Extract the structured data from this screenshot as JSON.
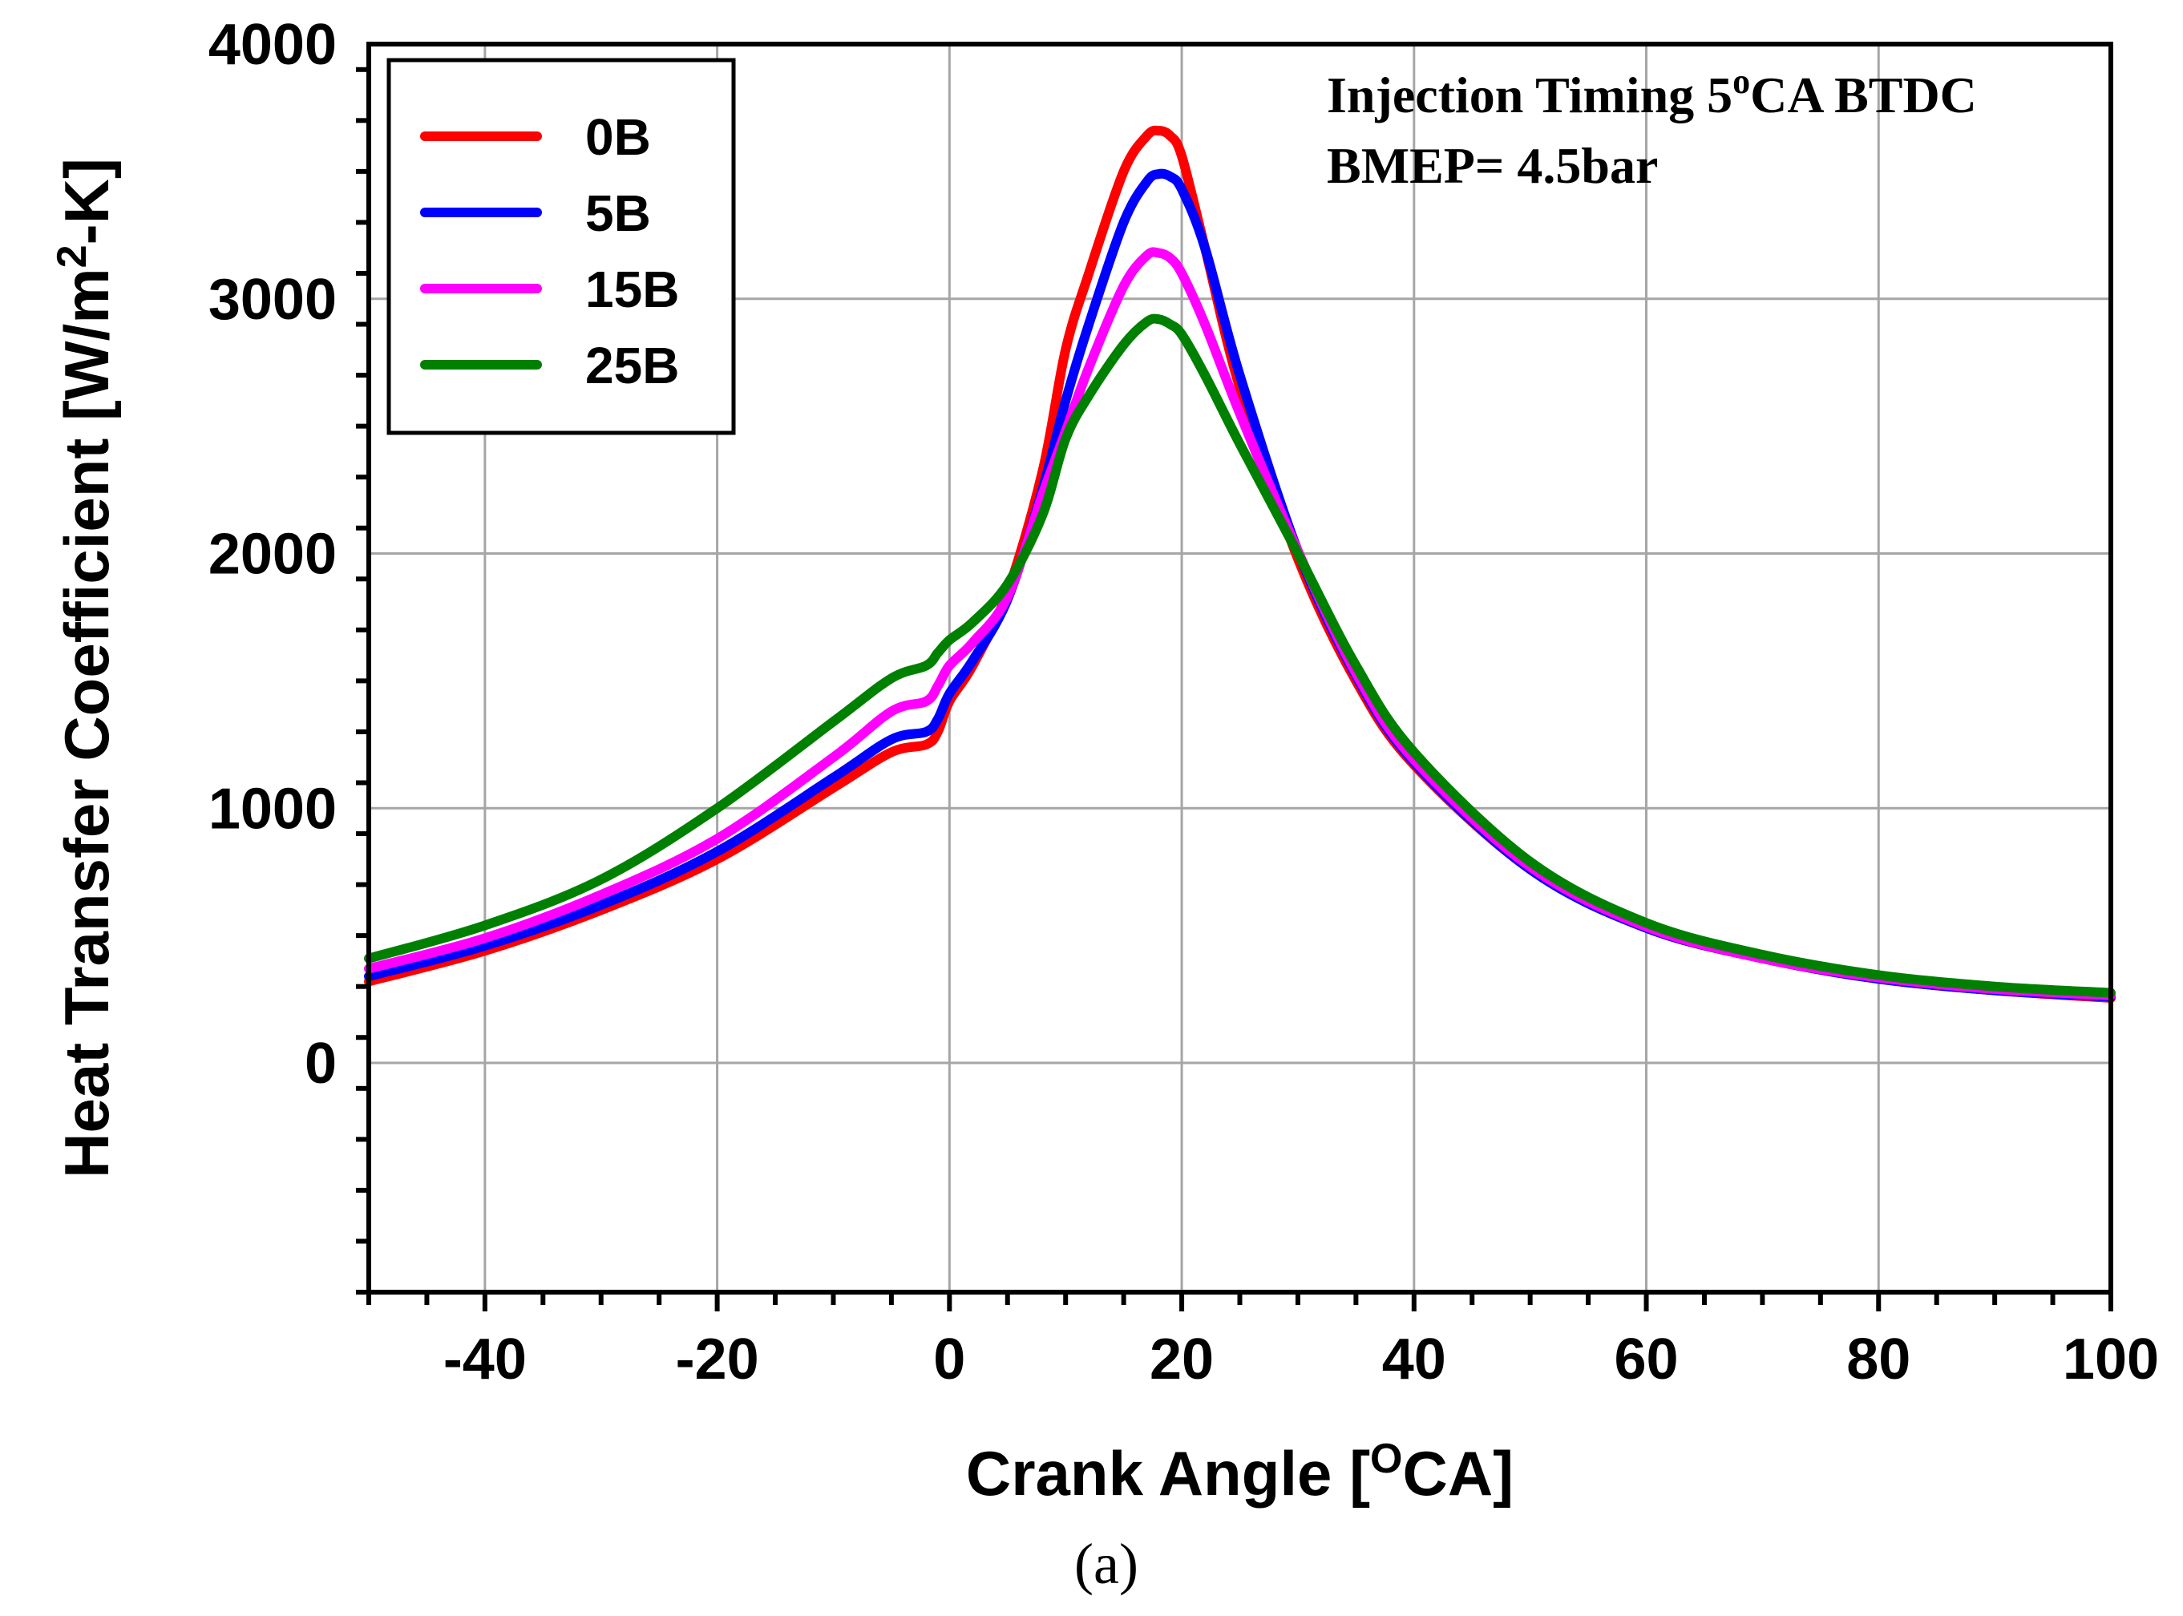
{
  "chart_data": {
    "type": "line",
    "title": "",
    "xlabel": "Crank Angle [",
    "xlabel_sup": "O",
    "xlabel_tail": "CA]",
    "ylabel": "Heat Transfer Coefficient [W/m",
    "ylabel_sup": "2",
    "ylabel_tail": "-K]",
    "xlim": [
      -50,
      100
    ],
    "ylim": [
      -900,
      4000
    ],
    "xticks": [
      -40,
      -20,
      0,
      20,
      40,
      60,
      80,
      100
    ],
    "xtick_labels": [
      "-40",
      "-20",
      "0",
      "20",
      "40",
      "60",
      "80",
      "100"
    ],
    "yticks": [
      0,
      1000,
      2000,
      3000,
      4000
    ],
    "ytick_labels": [
      "0",
      "1000",
      "2000",
      "3000",
      "4000"
    ],
    "x_minor_step": 5,
    "y_minor_step": 200,
    "grid": true,
    "legend_position": "top-left",
    "annotations": {
      "line1_pre": "Injection Timing 5",
      "line1_sup": "o",
      "line1_post": "CA BTDC",
      "line2": "BMEP= 4.5bar"
    },
    "caption": "(a)",
    "series": [
      {
        "name": "0B",
        "color": "#ff0000",
        "x": [
          -50,
          -40,
          -30,
          -20,
          -10,
          -5,
          -2,
          -1,
          0,
          2,
          5,
          8,
          10,
          12,
          15,
          17,
          18,
          19,
          20,
          22,
          25,
          30,
          35,
          40,
          50,
          60,
          70,
          80,
          90,
          100
        ],
        "y": [
          320,
          440,
          600,
          800,
          1080,
          1220,
          1250,
          1300,
          1420,
          1560,
          1850,
          2320,
          2800,
          3100,
          3500,
          3640,
          3660,
          3640,
          3560,
          3200,
          2650,
          1980,
          1500,
          1170,
          760,
          530,
          410,
          330,
          285,
          255
        ]
      },
      {
        "name": "5B",
        "color": "#0000ff",
        "x": [
          -50,
          -40,
          -30,
          -20,
          -10,
          -5,
          -2,
          -1,
          0,
          2,
          5,
          8,
          10,
          12,
          15,
          17,
          18,
          19,
          20,
          22,
          25,
          30,
          35,
          40,
          50,
          60,
          70,
          80,
          90,
          100
        ],
        "y": [
          340,
          460,
          620,
          830,
          1120,
          1270,
          1300,
          1350,
          1450,
          1580,
          1820,
          2250,
          2600,
          2900,
          3300,
          3460,
          3490,
          3480,
          3430,
          3200,
          2700,
          2010,
          1520,
          1180,
          760,
          530,
          410,
          330,
          285,
          260
        ]
      },
      {
        "name": "15B",
        "color": "#ff00ff",
        "x": [
          -50,
          -40,
          -30,
          -20,
          -10,
          -5,
          -2,
          -1,
          0,
          2,
          5,
          8,
          10,
          12,
          15,
          17,
          18,
          19,
          20,
          22,
          25,
          30,
          35,
          40,
          50,
          60,
          70,
          80,
          90,
          100
        ],
        "y": [
          370,
          490,
          660,
          880,
          1200,
          1380,
          1420,
          1480,
          1560,
          1650,
          1830,
          2230,
          2480,
          2730,
          3050,
          3170,
          3180,
          3160,
          3100,
          2900,
          2550,
          2010,
          1530,
          1190,
          770,
          535,
          410,
          335,
          290,
          265
        ]
      },
      {
        "name": "25B",
        "color": "#008000",
        "x": [
          -50,
          -40,
          -30,
          -20,
          -10,
          -5,
          -2,
          -1,
          0,
          2,
          5,
          8,
          10,
          12,
          15,
          17,
          18,
          19,
          20,
          22,
          25,
          30,
          35,
          40,
          50,
          60,
          70,
          80,
          90,
          100
        ],
        "y": [
          410,
          540,
          720,
          1000,
          1340,
          1510,
          1560,
          1610,
          1660,
          1730,
          1880,
          2150,
          2450,
          2620,
          2820,
          2910,
          2920,
          2900,
          2860,
          2700,
          2430,
          2000,
          1560,
          1220,
          790,
          550,
          425,
          345,
          300,
          275
        ]
      }
    ]
  }
}
